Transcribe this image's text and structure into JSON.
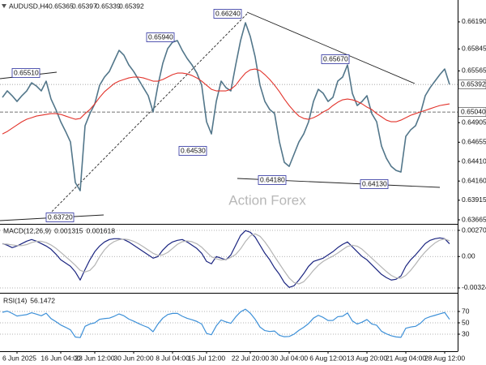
{
  "chart_data": [
    {
      "type": "line",
      "title": "AUDUSD,H4",
      "ohlc": [
        0.65365,
        0.65397,
        0.65339
      ],
      "ylim": [
        0.63624,
        0.66469
      ],
      "yticks": [
        {
          "value": 0.6619,
          "label": "0.66190"
        },
        0.65845,
        0.65565,
        0.64905,
        0.64655,
        {
          "value": 0.6441,
          "label": "0.64410"
        },
        {
          "value": 0.6416,
          "label": "0.64160"
        },
        0.63915,
        0.63665
      ],
      "level": {
        "value": 0.6504,
        "label": "0.65040"
      },
      "annotations": [
        "0.65510",
        "0.63720",
        "0.65940",
        "0.64530",
        "0.66240",
        "0.65670",
        "0.64180",
        "0.64130"
      ],
      "watermark": "Action Forex",
      "series": [
        {
          "color": "#52768a",
          "values": [
            0.65227,
            0.6531,
            0.65248,
            0.65175,
            0.65248,
            0.6531,
            0.65413,
            0.65372,
            0.6531,
            0.65434,
            0.65206,
            0.65072,
            0.64916,
            0.64792,
            0.64658,
            0.6414,
            0.64037,
            0.64865,
            0.6502,
            0.65144,
            0.65382,
            0.65486,
            0.65558,
            0.65693,
            0.65827,
            0.65765,
            0.65641,
            0.65558,
            0.65455,
            0.65351,
            0.65248,
            0.65041,
            0.65382,
            0.65662,
            0.65848,
            0.65931,
            0.65951,
            0.65827,
            0.65724,
            0.65641,
            0.65537,
            0.65382,
            0.64916,
            0.64761,
            0.65175,
            0.65434,
            0.65351,
            0.6531,
            0.65641,
            0.65951,
            0.66179,
            0.66003,
            0.65744,
            0.65382,
            0.65175,
            0.65072,
            0.6502,
            0.64658,
            0.64399,
            0.64347,
            0.64502,
            0.64658,
            0.64761,
            0.64916,
            0.65175,
            0.6533,
            0.65279,
            0.65175,
            0.65227,
            0.65434,
            0.65486,
            0.65641,
            0.65279,
            0.65123,
            0.65175,
            0.65248,
            0.6502,
            0.64916,
            0.64606,
            0.64451,
            0.64347,
            0.64295,
            0.64275,
            0.6473,
            0.64813,
            0.64865,
            0.6502,
            0.65248,
            0.65351,
            0.65434,
            0.65517,
            0.65589,
            0.65392
          ]
        },
        {
          "color": "#e2332b",
          "values": [
            0.64761,
            0.64792,
            0.64834,
            0.64875,
            0.64916,
            0.64948,
            0.64968,
            0.64989,
            0.64999,
            0.6501,
            0.6502,
            0.6502,
            0.6501,
            0.64989,
            0.64968,
            0.64948,
            0.64958,
            0.6502,
            0.65072,
            0.65144,
            0.65227,
            0.65299,
            0.65351,
            0.65403,
            0.65434,
            0.65455,
            0.65475,
            0.65486,
            0.65486,
            0.65475,
            0.65455,
            0.65434,
            0.65434,
            0.65455,
            0.65486,
            0.65517,
            0.65537,
            0.65537,
            0.65527,
            0.65506,
            0.65475,
            0.65434,
            0.65382,
            0.6533,
            0.6531,
            0.6531,
            0.6531,
            0.6533,
            0.65382,
            0.65465,
            0.65537,
            0.65579,
            0.65589,
            0.65569,
            0.65517,
            0.65455,
            0.65382,
            0.65299,
            0.65206,
            0.65123,
            0.65051,
            0.64989,
            0.64958,
            0.64948,
            0.64968,
            0.64999,
            0.65041,
            0.65072,
            0.65123,
            0.65165,
            0.65196,
            0.65206,
            0.65196,
            0.65175,
            0.65144,
            0.65103,
            0.65072,
            0.6502,
            0.64979,
            0.64937,
            0.64916,
            0.64916,
            0.64937,
            0.64968,
            0.64999,
            0.6502,
            0.65041,
            0.65061,
            0.65082,
            0.65103,
            0.65123,
            0.65134,
            0.65144
          ]
        }
      ]
    },
    {
      "type": "line",
      "title": "MACD(12,26,9)",
      "ylim": [
        -0.00366,
        0.003288
      ],
      "yticks": [
        0.002702,
        {
          "value": 0,
          "label": "0.00"
        },
        -0.003241
      ],
      "grid": true,
      "series": [
        {
          "color": "#1b2580",
          "values": [
            0.001339,
            0.001172,
            0.000921,
            0.001088,
            0.001339,
            0.00159,
            0.001758,
            0.00159,
            0.001339,
            0.001088,
            0.000753,
            0.000251,
            -0.000335,
            -0.00067,
            -0.001004,
            -0.00159,
            -0.002427,
            -0.001339,
            -0.000335,
            0.000502,
            0.001088,
            0.001507,
            0.001758,
            0.001841,
            0.001841,
            0.001758,
            0.001507,
            0.001172,
            0.000837,
            0.000502,
            0.000167,
            -0.000167,
            0,
            0.00067,
            0.001172,
            0.001507,
            0.001674,
            0.001758,
            0.001507,
            0.001172,
            0.000837,
            0.000335,
            -0.000502,
            -0.000753,
            0,
            -0.000167,
            -0.000335,
            0.000167,
            0.001172,
            0.002176,
            0.002678,
            0.002511,
            0.002009,
            0.001172,
            0.000335,
            -0.000335,
            -0.001172,
            -0.001841,
            -0.002678,
            -0.003181,
            -0.003013,
            -0.002427,
            -0.001758,
            -0.001004,
            -0.000502,
            -0.000335,
            -0.000167,
            0.000167,
            0.000502,
            0.000921,
            0.001256,
            0.001507,
            0.001004,
            0.000502,
            0,
            -0.000335,
            -0.000837,
            -0.001339,
            -0.001841,
            -0.002176,
            -0.002427,
            -0.002344,
            -0.002009,
            -0.001004,
            -0.000335,
            0.000167,
            0.000753,
            0.001339,
            0.001674,
            0.001841,
            0.001925,
            0.001841,
            0.001315
          ]
        },
        {
          "color": "#b4b4b4",
          "values": [
            0.0013,
            0.00128,
            0.0012,
            0.00113,
            0.00113,
            0.001235,
            0.001444,
            0.001569,
            0.001569,
            0.001444,
            0.001193,
            0.000858,
            0.000439,
            0,
            -0.00044,
            -0.0009,
            -0.001423,
            -0.00159,
            -0.001423,
            -0.0009,
            -2.1e-05,
            0.000691,
            0.001214,
            0.001549,
            0.001737,
            0.0018,
            0.001737,
            0.00157,
            0.001319,
            0.001005,
            0.00067,
            0.000335,
            0.000126,
            0.000168,
            0.000419,
            0.000837,
            0.001256,
            0.001528,
            0.001612,
            0.001528,
            0.001319,
            0.000963,
            0.000461,
            -2.1e-05,
            -0.00023,
            -0.000356,
            -0.000314,
            -8.4e-05,
            0.000209,
            0.000795,
            0.001548,
            0.002134,
            0.002344,
            0.002093,
            0.001507,
            0.000795,
            0,
            -0.000753,
            -0.001507,
            -0.002218,
            -0.002678,
            -0.002825,
            -0.002595,
            -0.002051,
            -0.001423,
            -0.0009,
            -0.000502,
            -0.000209,
            4.2e-05,
            0.000356,
            0.000712,
            0.001047,
            0.001172,
            0.001067,
            0.000753,
            0.000293,
            -0.000168,
            -0.000628,
            -0.001088,
            -0.001548,
            -0.001946,
            -0.002197,
            -0.002239,
            -0.001946,
            -0.001423,
            -0.000795,
            -0.000105,
            0.000481,
            0.000983,
            0.001402,
            0.001695,
            0.00182,
            0.001618
          ]
        }
      ]
    },
    {
      "type": "line",
      "title": "RSI(14)",
      "ylim": [
        0,
        100
      ],
      "yticks": [
        70,
        50,
        30
      ],
      "grid": true,
      "categories": [
        null,
        null,
        null,
        "6 Jun 2025",
        null,
        null,
        null,
        null,
        null,
        null,
        null,
        null,
        "16 Jun 04:00",
        null,
        null,
        null,
        null,
        null,
        null,
        "23 Jun 12:00",
        null,
        null,
        null,
        null,
        null,
        null,
        null,
        "30 Jun 20:00",
        null,
        null,
        null,
        null,
        null,
        null,
        null,
        "8 Jul 04:00",
        null,
        null,
        null,
        null,
        null,
        null,
        "15 Jul 12:00",
        null,
        null,
        null,
        null,
        null,
        null,
        null,
        null,
        "22 Jul 20:00",
        null,
        null,
        null,
        null,
        null,
        null,
        null,
        "30 Jul 04:00",
        null,
        null,
        null,
        null,
        null,
        null,
        null,
        "6 Aug 12:00",
        null,
        null,
        null,
        null,
        null,
        null,
        null,
        "13 Aug 20:00",
        null,
        null,
        null,
        null,
        null,
        null,
        null,
        "21 Aug 04:00",
        null,
        null,
        null,
        null,
        null,
        null,
        null,
        "28 Aug 12:00",
        null
      ],
      "series": [
        {
          "color": "#3d90d8",
          "values": [
            68.6,
            70.7,
            66.6,
            62,
            63.3,
            64.5,
            67.8,
            65.3,
            62.4,
            67,
            57.4,
            52.1,
            46.2,
            42.1,
            37.6,
            25,
            24,
            43.8,
            47.9,
            50,
            56.2,
            57.5,
            58.3,
            61.6,
            65.7,
            62.4,
            56.6,
            52.9,
            48.8,
            45,
            41.7,
            34.3,
            47.9,
            58.3,
            64.5,
            66.6,
            66.6,
            61.6,
            57.9,
            55.4,
            52.5,
            47.9,
            31.4,
            29,
            44.6,
            55,
            51.6,
            49.2,
            60.4,
            69.4,
            74,
            67,
            56.2,
            42.5,
            36.3,
            34.7,
            35.5,
            28,
            25.5,
            26,
            30,
            36.8,
            42.1,
            48.7,
            58.3,
            63.2,
            59.5,
            54.1,
            54.2,
            60.8,
            61.6,
            67.4,
            53.3,
            47.9,
            51.2,
            55.8,
            47.9,
            45.8,
            35.1,
            30.6,
            27.2,
            25.2,
            24.5,
            40.5,
            42.6,
            43.8,
            49.2,
            57.5,
            60.8,
            63.2,
            65.8,
            68.2,
            56.1472
          ]
        }
      ]
    }
  ]
}
